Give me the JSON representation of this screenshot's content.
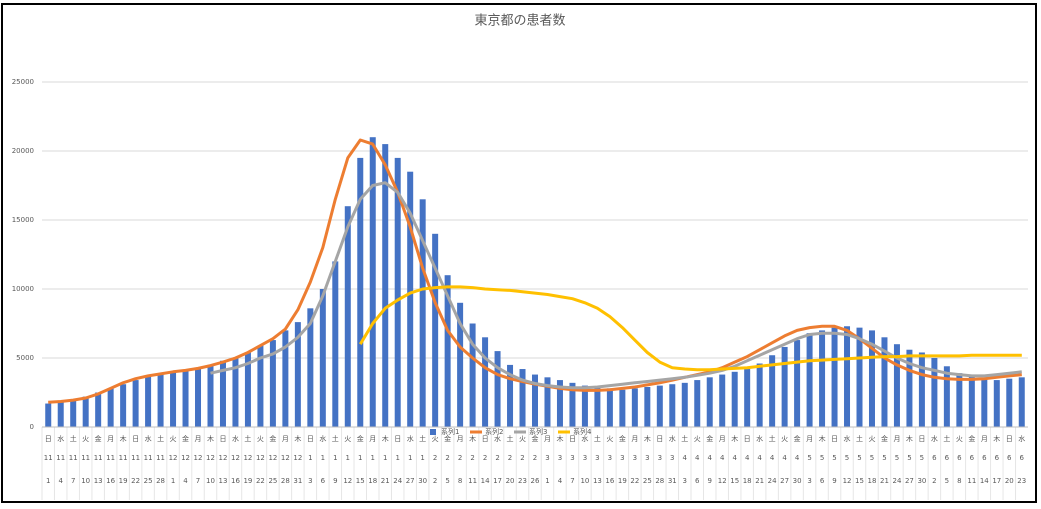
{
  "chart_data": {
    "type": "bar",
    "title": "東京都の患者数",
    "weekdays": [
      "日",
      "水",
      "土",
      "火",
      "金",
      "月",
      "木",
      "日",
      "水",
      "土",
      "火",
      "金",
      "月",
      "木",
      "日",
      "水",
      "土",
      "火",
      "金",
      "月",
      "木",
      "日",
      "水",
      "土",
      "火",
      "金",
      "月",
      "木",
      "日",
      "水",
      "土",
      "火",
      "金",
      "月",
      "木",
      "日",
      "水",
      "土",
      "火",
      "金",
      "月",
      "木",
      "日",
      "水",
      "土",
      "火",
      "金",
      "月",
      "木",
      "日",
      "水",
      "土",
      "火",
      "金",
      "月",
      "木",
      "日",
      "水",
      "土",
      "火",
      "金",
      "月",
      "木",
      "日",
      "水",
      "土",
      "火",
      "金",
      "月",
      "木",
      "日",
      "水",
      "土",
      "火",
      "金",
      "月",
      "木",
      "日",
      "水"
    ],
    "months": [
      "11",
      "11",
      "11",
      "11",
      "11",
      "11",
      "11",
      "11",
      "11",
      "11",
      "12",
      "12",
      "12",
      "12",
      "12",
      "12",
      "12",
      "12",
      "12",
      "12",
      "12",
      "1",
      "1",
      "1",
      "1",
      "1",
      "1",
      "1",
      "1",
      "1",
      "1",
      "2",
      "2",
      "2",
      "2",
      "2",
      "2",
      "2",
      "2",
      "2",
      "3",
      "3",
      "3",
      "3",
      "3",
      "3",
      "3",
      "3",
      "3",
      "3",
      "3",
      "4",
      "4",
      "4",
      "4",
      "4",
      "4",
      "4",
      "4",
      "4",
      "4",
      "5",
      "5",
      "5",
      "5",
      "5",
      "5",
      "5",
      "5",
      "5",
      "5",
      "6",
      "6",
      "6",
      "6",
      "6",
      "6",
      "6",
      "6"
    ],
    "categories": [
      "1",
      "4",
      "7",
      "10",
      "13",
      "16",
      "19",
      "22",
      "25",
      "28",
      "1",
      "4",
      "7",
      "10",
      "13",
      "16",
      "19",
      "22",
      "25",
      "28",
      "31",
      "3",
      "6",
      "9",
      "12",
      "15",
      "18",
      "21",
      "24",
      "27",
      "30",
      "2",
      "5",
      "8",
      "11",
      "14",
      "17",
      "20",
      "23",
      "26",
      "1",
      "4",
      "7",
      "10",
      "13",
      "16",
      "19",
      "22",
      "25",
      "28",
      "31",
      "3",
      "6",
      "9",
      "12",
      "15",
      "18",
      "21",
      "24",
      "27",
      "30",
      "3",
      "6",
      "9",
      "12",
      "15",
      "18",
      "21",
      "24",
      "27",
      "30",
      "2",
      "5",
      "8",
      "11",
      "14",
      "17",
      "20",
      "23"
    ],
    "series": [
      {
        "name": "系列1",
        "type": "bar",
        "color": "#4472c4",
        "values": [
          1700,
          1800,
          2000,
          2200,
          2500,
          2800,
          3100,
          3400,
          3700,
          3900,
          4000,
          4100,
          4300,
          4500,
          4800,
          5000,
          5400,
          5900,
          6300,
          7000,
          7600,
          8600,
          10000,
          12000,
          16000,
          19500,
          21000,
          20500,
          19500,
          18500,
          16500,
          14000,
          11000,
          9000,
          7500,
          6500,
          5500,
          4500,
          4200,
          3800,
          3600,
          3400,
          3200,
          3000,
          2900,
          2800,
          2700,
          2800,
          2900,
          3000,
          3100,
          3200,
          3400,
          3600,
          3800,
          4000,
          4200,
          4600,
          5200,
          5800,
          6300,
          6800,
          7000,
          7200,
          7300,
          7200,
          7000,
          6500,
          6000,
          5600,
          5400,
          5000,
          4400,
          3900,
          3700,
          3500,
          3400,
          3500,
          3600
        ]
      },
      {
        "name": "系列2",
        "type": "line",
        "color": "#ed7d31",
        "values": [
          1800,
          1850,
          1950,
          2100,
          2400,
          2800,
          3200,
          3500,
          3700,
          3850,
          4000,
          4100,
          4250,
          4450,
          4700,
          5000,
          5400,
          5900,
          6400,
          7100,
          8500,
          10500,
          13000,
          16500,
          19500,
          20800,
          20500,
          19000,
          17000,
          14500,
          11500,
          9000,
          7000,
          5800,
          5000,
          4300,
          3800,
          3500,
          3300,
          3100,
          2950,
          2800,
          2700,
          2650,
          2650,
          2700,
          2800,
          2900,
          3050,
          3200,
          3400,
          3600,
          3800,
          4000,
          4300,
          4700,
          5100,
          5600,
          6100,
          6600,
          7000,
          7200,
          7300,
          7300,
          7000,
          6400,
          5700,
          5000,
          4500,
          4100,
          3800,
          3600,
          3500,
          3450,
          3450,
          3500,
          3600,
          3700,
          3800
        ]
      },
      {
        "name": "系列3",
        "type": "line",
        "color": "#a5a5a5",
        "values": [
          null,
          null,
          null,
          null,
          null,
          null,
          null,
          null,
          null,
          null,
          null,
          null,
          null,
          3900,
          4100,
          4300,
          4600,
          5000,
          5300,
          5800,
          6500,
          7500,
          9500,
          12000,
          14500,
          16500,
          17500,
          17700,
          17000,
          15500,
          13500,
          11500,
          9500,
          7500,
          6000,
          5000,
          4300,
          3800,
          3400,
          3150,
          3000,
          2900,
          2850,
          2850,
          2900,
          3000,
          3100,
          3200,
          3300,
          3400,
          3500,
          3600,
          3750,
          3900,
          4100,
          4400,
          4800,
          5200,
          5600,
          6000,
          6400,
          6700,
          6800,
          6800,
          6700,
          6400,
          6000,
          5500,
          5000,
          4600,
          4300,
          4100,
          3900,
          3800,
          3700,
          3700,
          3800,
          3900,
          4000
        ]
      },
      {
        "name": "系列4",
        "type": "line",
        "color": "#ffc000",
        "values": [
          null,
          null,
          null,
          null,
          null,
          null,
          null,
          null,
          null,
          null,
          null,
          null,
          null,
          null,
          null,
          null,
          null,
          null,
          null,
          null,
          null,
          null,
          null,
          null,
          null,
          6000,
          7500,
          8600,
          9200,
          9700,
          10000,
          10100,
          10150,
          10150,
          10100,
          10000,
          9950,
          9900,
          9800,
          9700,
          9600,
          9450,
          9300,
          9000,
          8600,
          8000,
          7200,
          6300,
          5400,
          4700,
          4300,
          4200,
          4150,
          4150,
          4200,
          4250,
          4300,
          4400,
          4500,
          4600,
          4700,
          4800,
          4850,
          4900,
          4950,
          5000,
          5050,
          5100,
          5100,
          5150,
          5150,
          5150,
          5150,
          5150,
          5200,
          5200,
          5200,
          5200,
          5200
        ]
      }
    ],
    "ylim": [
      0,
      25000
    ],
    "yticks": [
      0,
      5000,
      10000,
      15000,
      20000,
      25000
    ],
    "grid": true
  }
}
